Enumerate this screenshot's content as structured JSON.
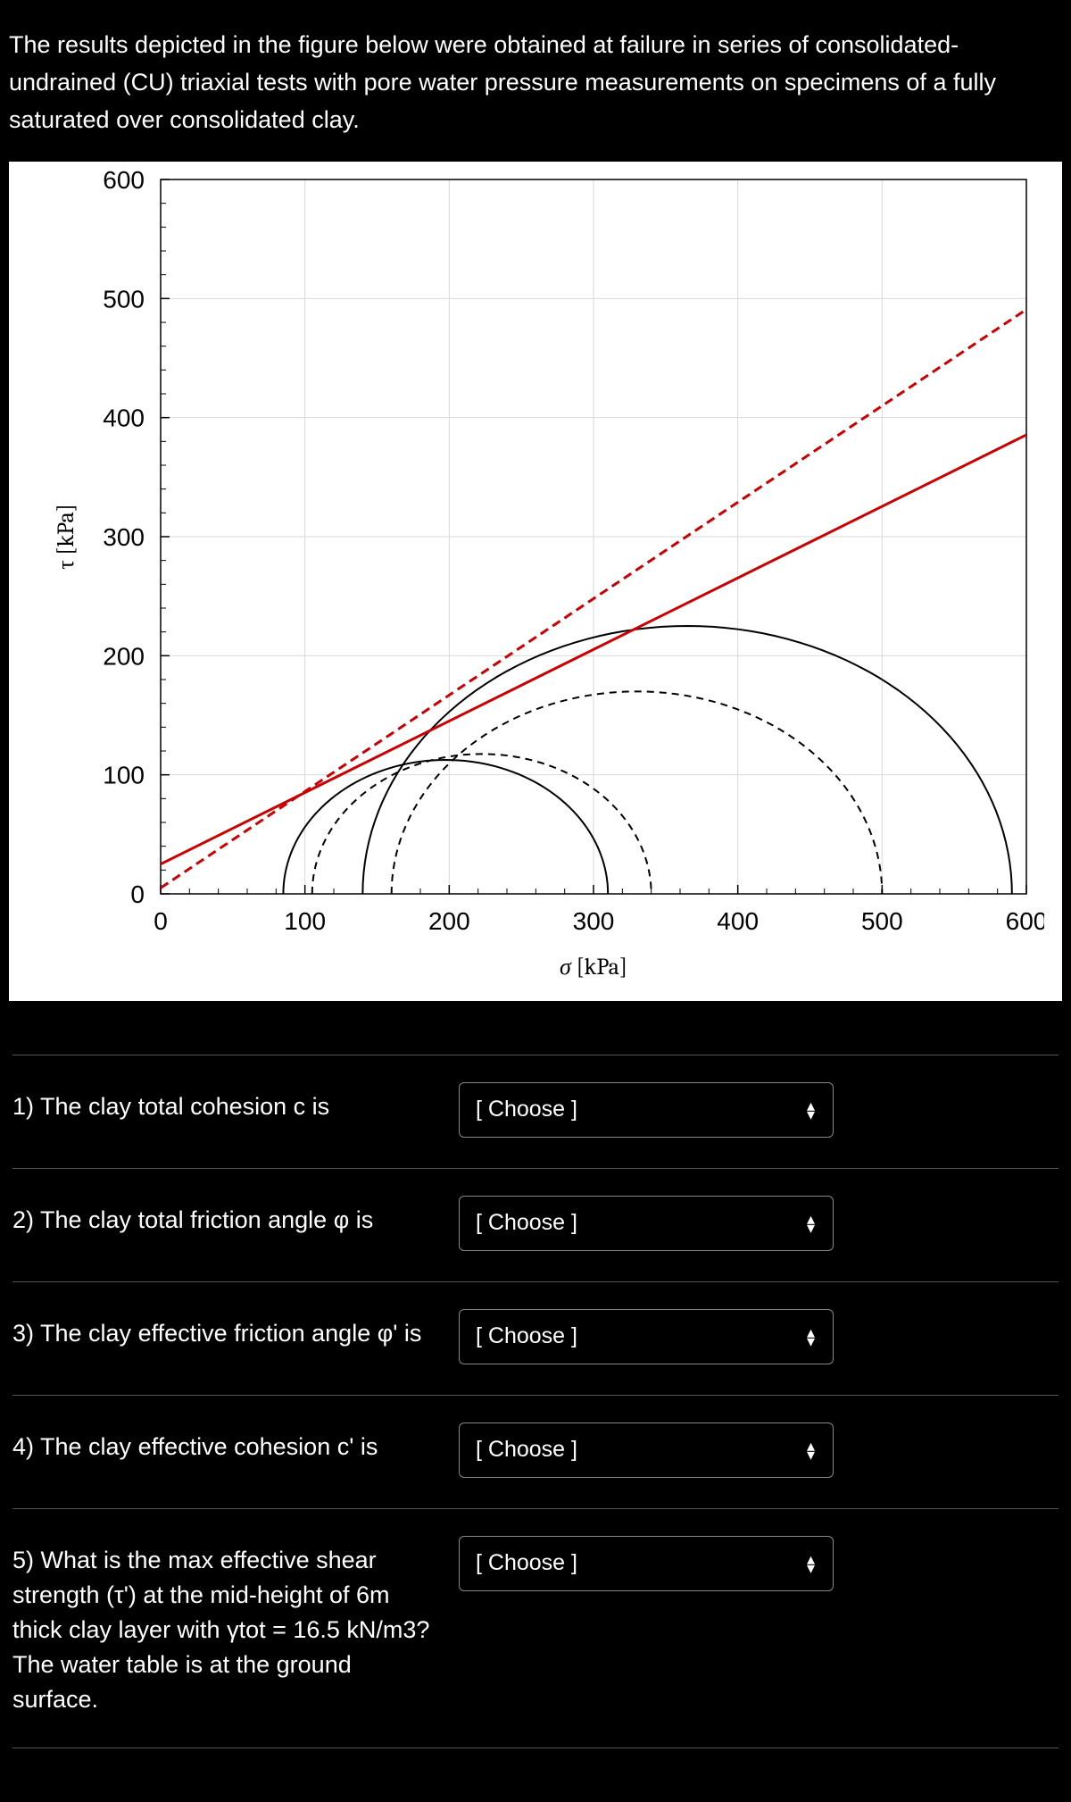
{
  "prompt_text": "The results depicted in the figure below were obtained at failure in series of consolidated-undrained (CU) triaxial tests with pore water pressure measurements on specimens of a fully saturated over consolidated clay.",
  "chart": {
    "type": "mohr-circle-plot",
    "background_color": "#ffffff",
    "grid_color": "#d9d9d9",
    "axis_color": "#000000",
    "x_label": "σ [kPa]",
    "y_label": "τ [kPa]",
    "label_fontsize": 26,
    "tick_fontsize": 28,
    "x_range": [
      0,
      600
    ],
    "y_range": [
      0,
      600
    ],
    "x_ticks": [
      0,
      100,
      200,
      300,
      400,
      500,
      600
    ],
    "y_ticks": [
      0,
      100,
      200,
      300,
      400,
      500,
      600
    ],
    "minor_tick_step": 20,
    "circles_solid": [
      {
        "sigma_min": 85,
        "sigma_max": 310,
        "color": "#000000",
        "width": 2
      },
      {
        "sigma_min": 140,
        "sigma_max": 590,
        "color": "#000000",
        "width": 2
      }
    ],
    "circles_dashed": [
      {
        "sigma_min": 105,
        "sigma_max": 340,
        "color": "#000000",
        "width": 2,
        "dash": "8,6"
      },
      {
        "sigma_min": 160,
        "sigma_max": 500,
        "color": "#000000",
        "width": 2,
        "dash": "8,6"
      }
    ],
    "envelopes": [
      {
        "intercept": 25,
        "slope_deg": 31,
        "color": "#cc0000",
        "width": 3,
        "dash": null
      },
      {
        "intercept": 5,
        "slope_deg": 39,
        "color": "#cc0000",
        "width": 3,
        "dash": "10,6"
      }
    ]
  },
  "questions": [
    {
      "label": "1) The clay total cohesion c is",
      "placeholder": "[ Choose ]"
    },
    {
      "label": "2) The clay total friction angle φ is",
      "placeholder": "[ Choose ]"
    },
    {
      "label": "3) The clay effective friction angle φ' is",
      "placeholder": "[ Choose ]"
    },
    {
      "label": "4) The clay effective cohesion c' is",
      "placeholder": "[ Choose ]"
    },
    {
      "label": "5) What is the max effective shear strength (τ') at the mid-height of 6m thick clay layer with γtot = 16.5 kN/m3? The water table is at the ground surface.",
      "placeholder": "[ Choose ]"
    }
  ]
}
